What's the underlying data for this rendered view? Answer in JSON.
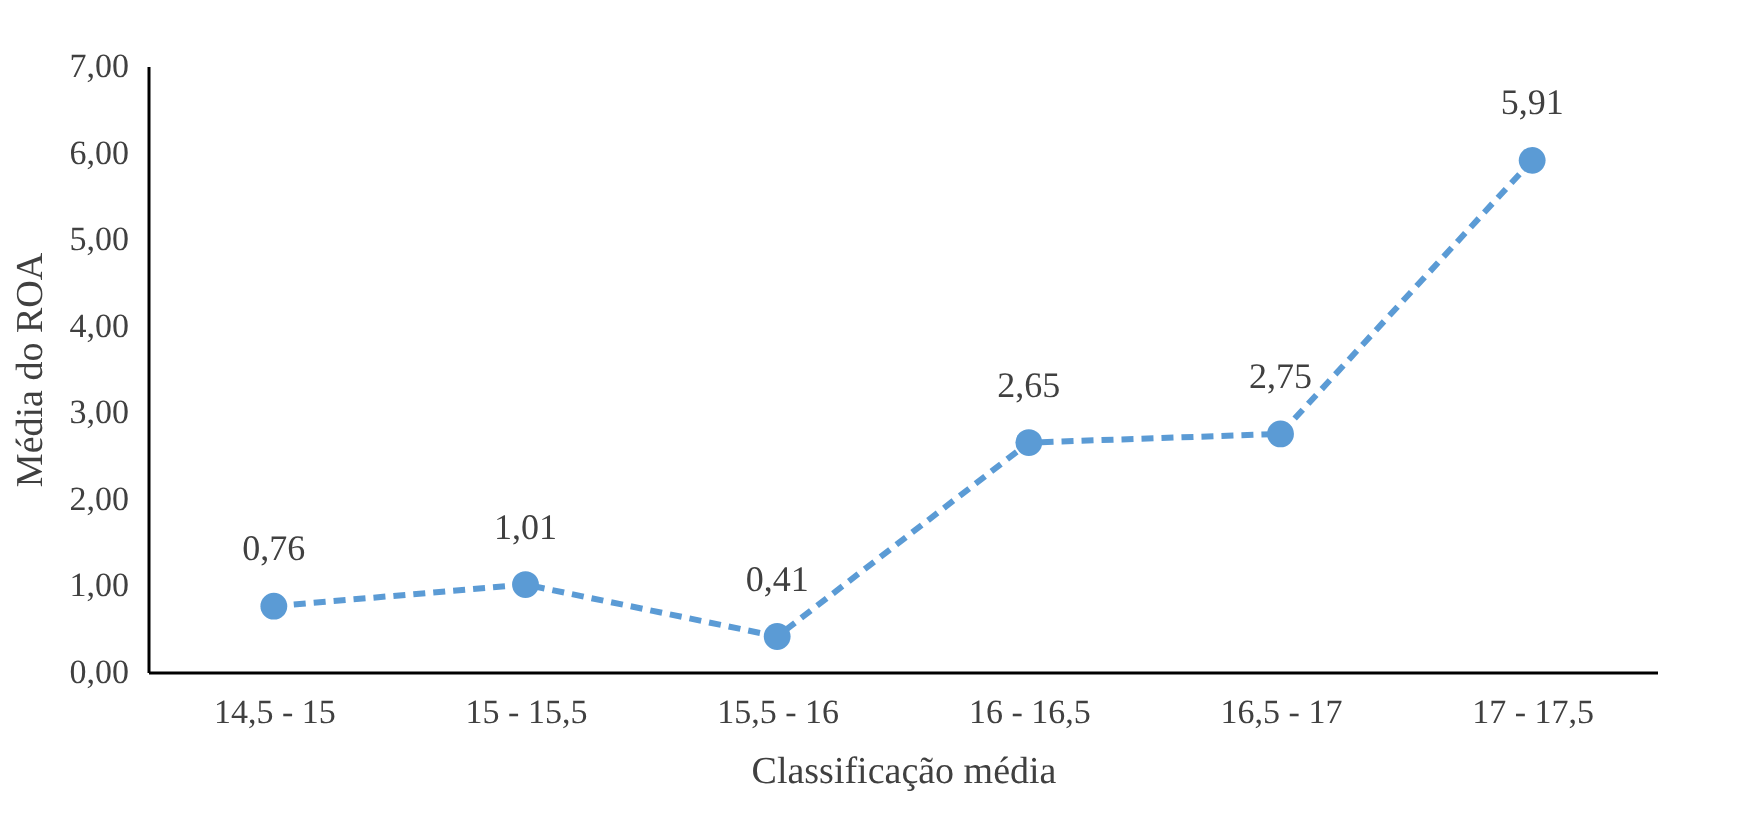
{
  "chart_data": {
    "type": "line",
    "xlabel": "Classificação média",
    "ylabel": "Média do ROA",
    "categories": [
      "14,5 - 15",
      "15 - 15,5",
      "15,5 - 16",
      "16 - 16,5",
      "16,5 - 17",
      "17 - 17,5"
    ],
    "series": [
      {
        "color": "#5b9bd5",
        "values": [
          0.76,
          1.01,
          0.41,
          2.65,
          2.75,
          5.91
        ],
        "value_labels": [
          "0,76",
          "1,01",
          "0,41",
          "2,65",
          "2,75",
          "5,91"
        ]
      }
    ],
    "ylim": [
      0,
      7
    ],
    "yticks": [
      {
        "value": 0,
        "label": "0,00"
      },
      {
        "value": 1,
        "label": "1,00"
      },
      {
        "value": 2,
        "label": "2,00"
      },
      {
        "value": 3,
        "label": "3,00"
      },
      {
        "value": 4,
        "label": "4,00"
      },
      {
        "value": 5,
        "label": "5,00"
      },
      {
        "value": 6,
        "label": "6,00"
      },
      {
        "value": 7,
        "label": "7,00"
      }
    ],
    "grid": false,
    "marker": "circle",
    "line_style": "dashed"
  }
}
